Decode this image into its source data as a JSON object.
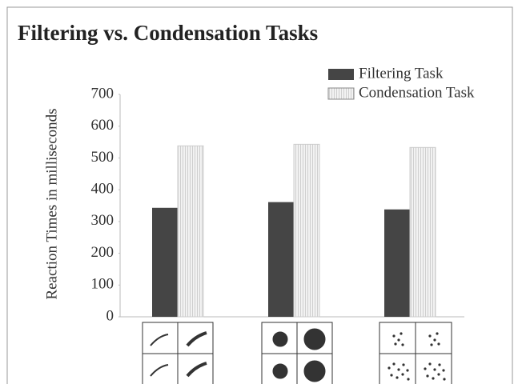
{
  "chart_data": {
    "type": "bar",
    "title": "Filtering vs. Condensation Tasks",
    "y_label": "Reaction Times in milliseconds",
    "categories": [
      null,
      null,
      null
    ],
    "series": [
      {
        "name": "Filtering Task",
        "color": "#454545",
        "values": [
          343,
          361,
          338
        ]
      },
      {
        "name": "Condensation Task",
        "color": "#eeeeee",
        "values": [
          538,
          543,
          533
        ]
      }
    ],
    "ylim": [
      0,
      700
    ],
    "yticks": [
      0,
      100,
      200,
      300,
      400,
      500,
      600,
      700
    ],
    "legend": "top-right"
  }
}
